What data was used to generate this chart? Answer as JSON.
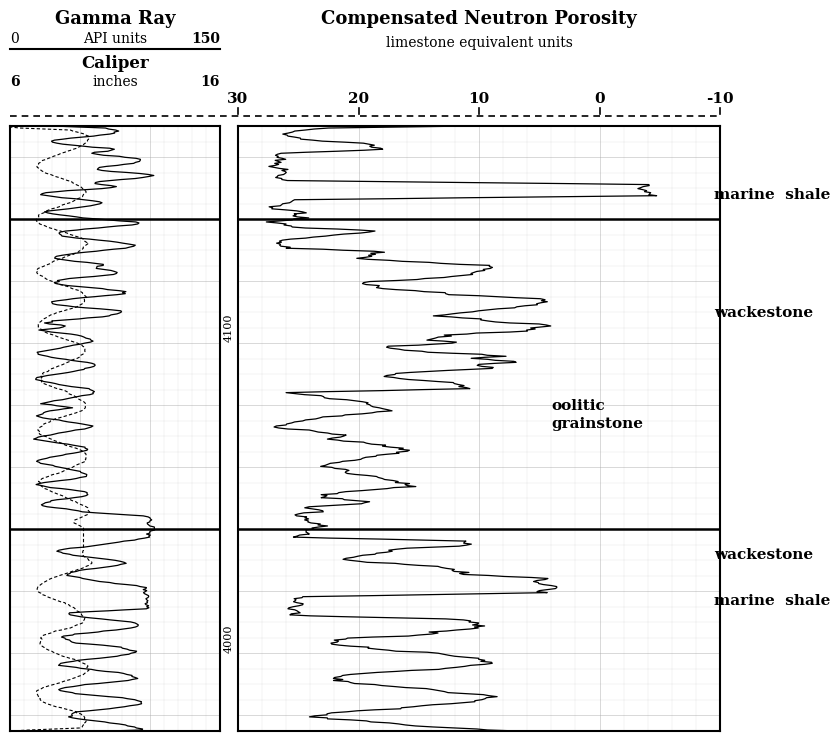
{
  "title_gr": "Gamma Ray",
  "subtitle_gr": "API units",
  "gr_min": 0,
  "gr_max": 150,
  "title_cal": "Caliper",
  "subtitle_cal": "inches",
  "cal_min": 6,
  "cal_max": 16,
  "title_cnp": "Compensated Neutron Porosity",
  "subtitle_cnp": "limestone equivalent units",
  "cnp_min": 30,
  "cnp_max": -10,
  "depth_min": 3970,
  "depth_max": 4165,
  "depth_tick1": 4000,
  "depth_tick2": 4100,
  "background_color": "#ffffff",
  "grid_color": "#aaaaaa",
  "line_color": "#000000",
  "annot_fontsize": 11
}
